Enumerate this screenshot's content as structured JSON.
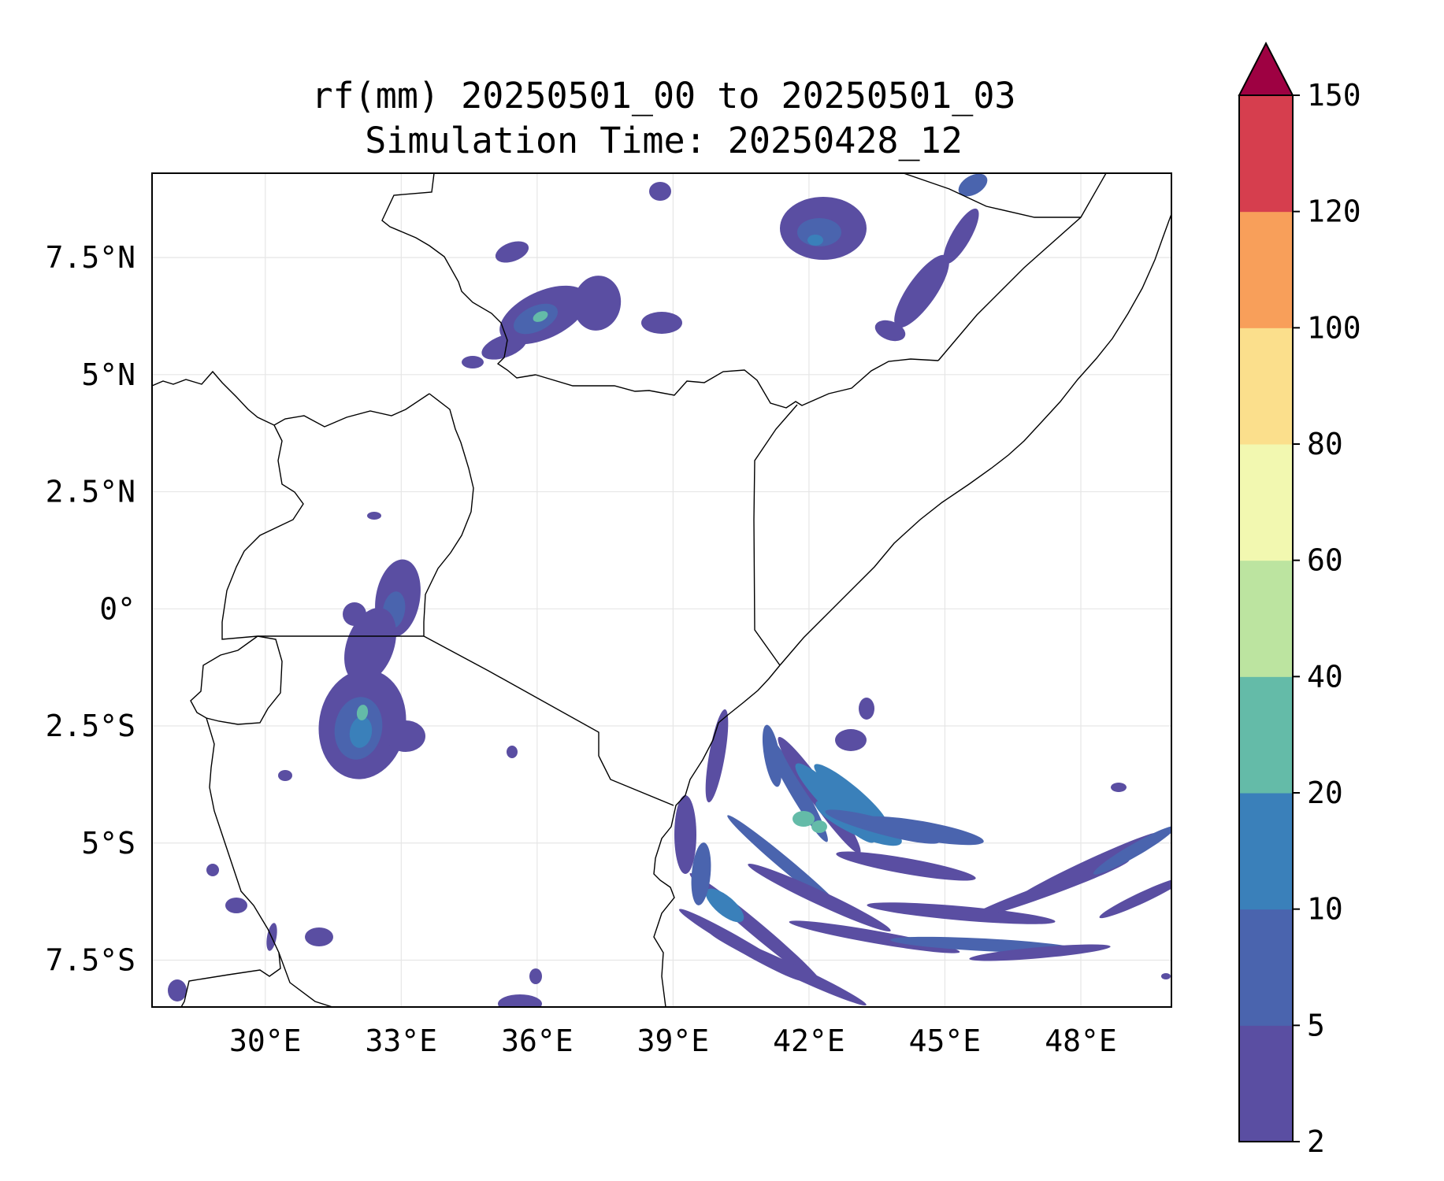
{
  "title_line1": "rf(mm) 20250501_00 to 20250501_03",
  "title_line2": "Simulation Time: 20250428_12",
  "map": {
    "lon_range": [
      27.5,
      50.0
    ],
    "lat_range": [
      -8.5,
      9.3
    ],
    "lon_ticks": [
      {
        "value": 30,
        "label": "30°E"
      },
      {
        "value": 33,
        "label": "33°E"
      },
      {
        "value": 36,
        "label": "36°E"
      },
      {
        "value": 39,
        "label": "39°E"
      },
      {
        "value": 42,
        "label": "42°E"
      },
      {
        "value": 45,
        "label": "45°E"
      },
      {
        "value": 48,
        "label": "48°E"
      }
    ],
    "lat_ticks": [
      {
        "value": 7.5,
        "label": "7.5°N"
      },
      {
        "value": 5,
        "label": "5°N"
      },
      {
        "value": 2.5,
        "label": "2.5°N"
      },
      {
        "value": 0,
        "label": "0°"
      },
      {
        "value": -2.5,
        "label": "2.5°S"
      },
      {
        "value": -5,
        "label": "5°S"
      },
      {
        "value": -7.5,
        "label": "7.5°S"
      }
    ],
    "gridlines": true
  },
  "colorbar": {
    "levels": [
      "2",
      "5",
      "10",
      "20",
      "40",
      "60",
      "80",
      "100",
      "120",
      "150"
    ],
    "colors": [
      "#5a4ea2",
      "#4a64ae",
      "#3a80ba",
      "#64bba8",
      "#bce4a0",
      "#f2f8b0",
      "#fbdf8c",
      "#f89f5a",
      "#d63e4e"
    ],
    "extend_max_color": "#9e0142"
  },
  "rain_colors": {
    "c1": "#5a4ea2",
    "c2": "#4a64ae",
    "c3": "#3a80ba",
    "c4": "#64bba8",
    "c5": "#bce4a0"
  }
}
